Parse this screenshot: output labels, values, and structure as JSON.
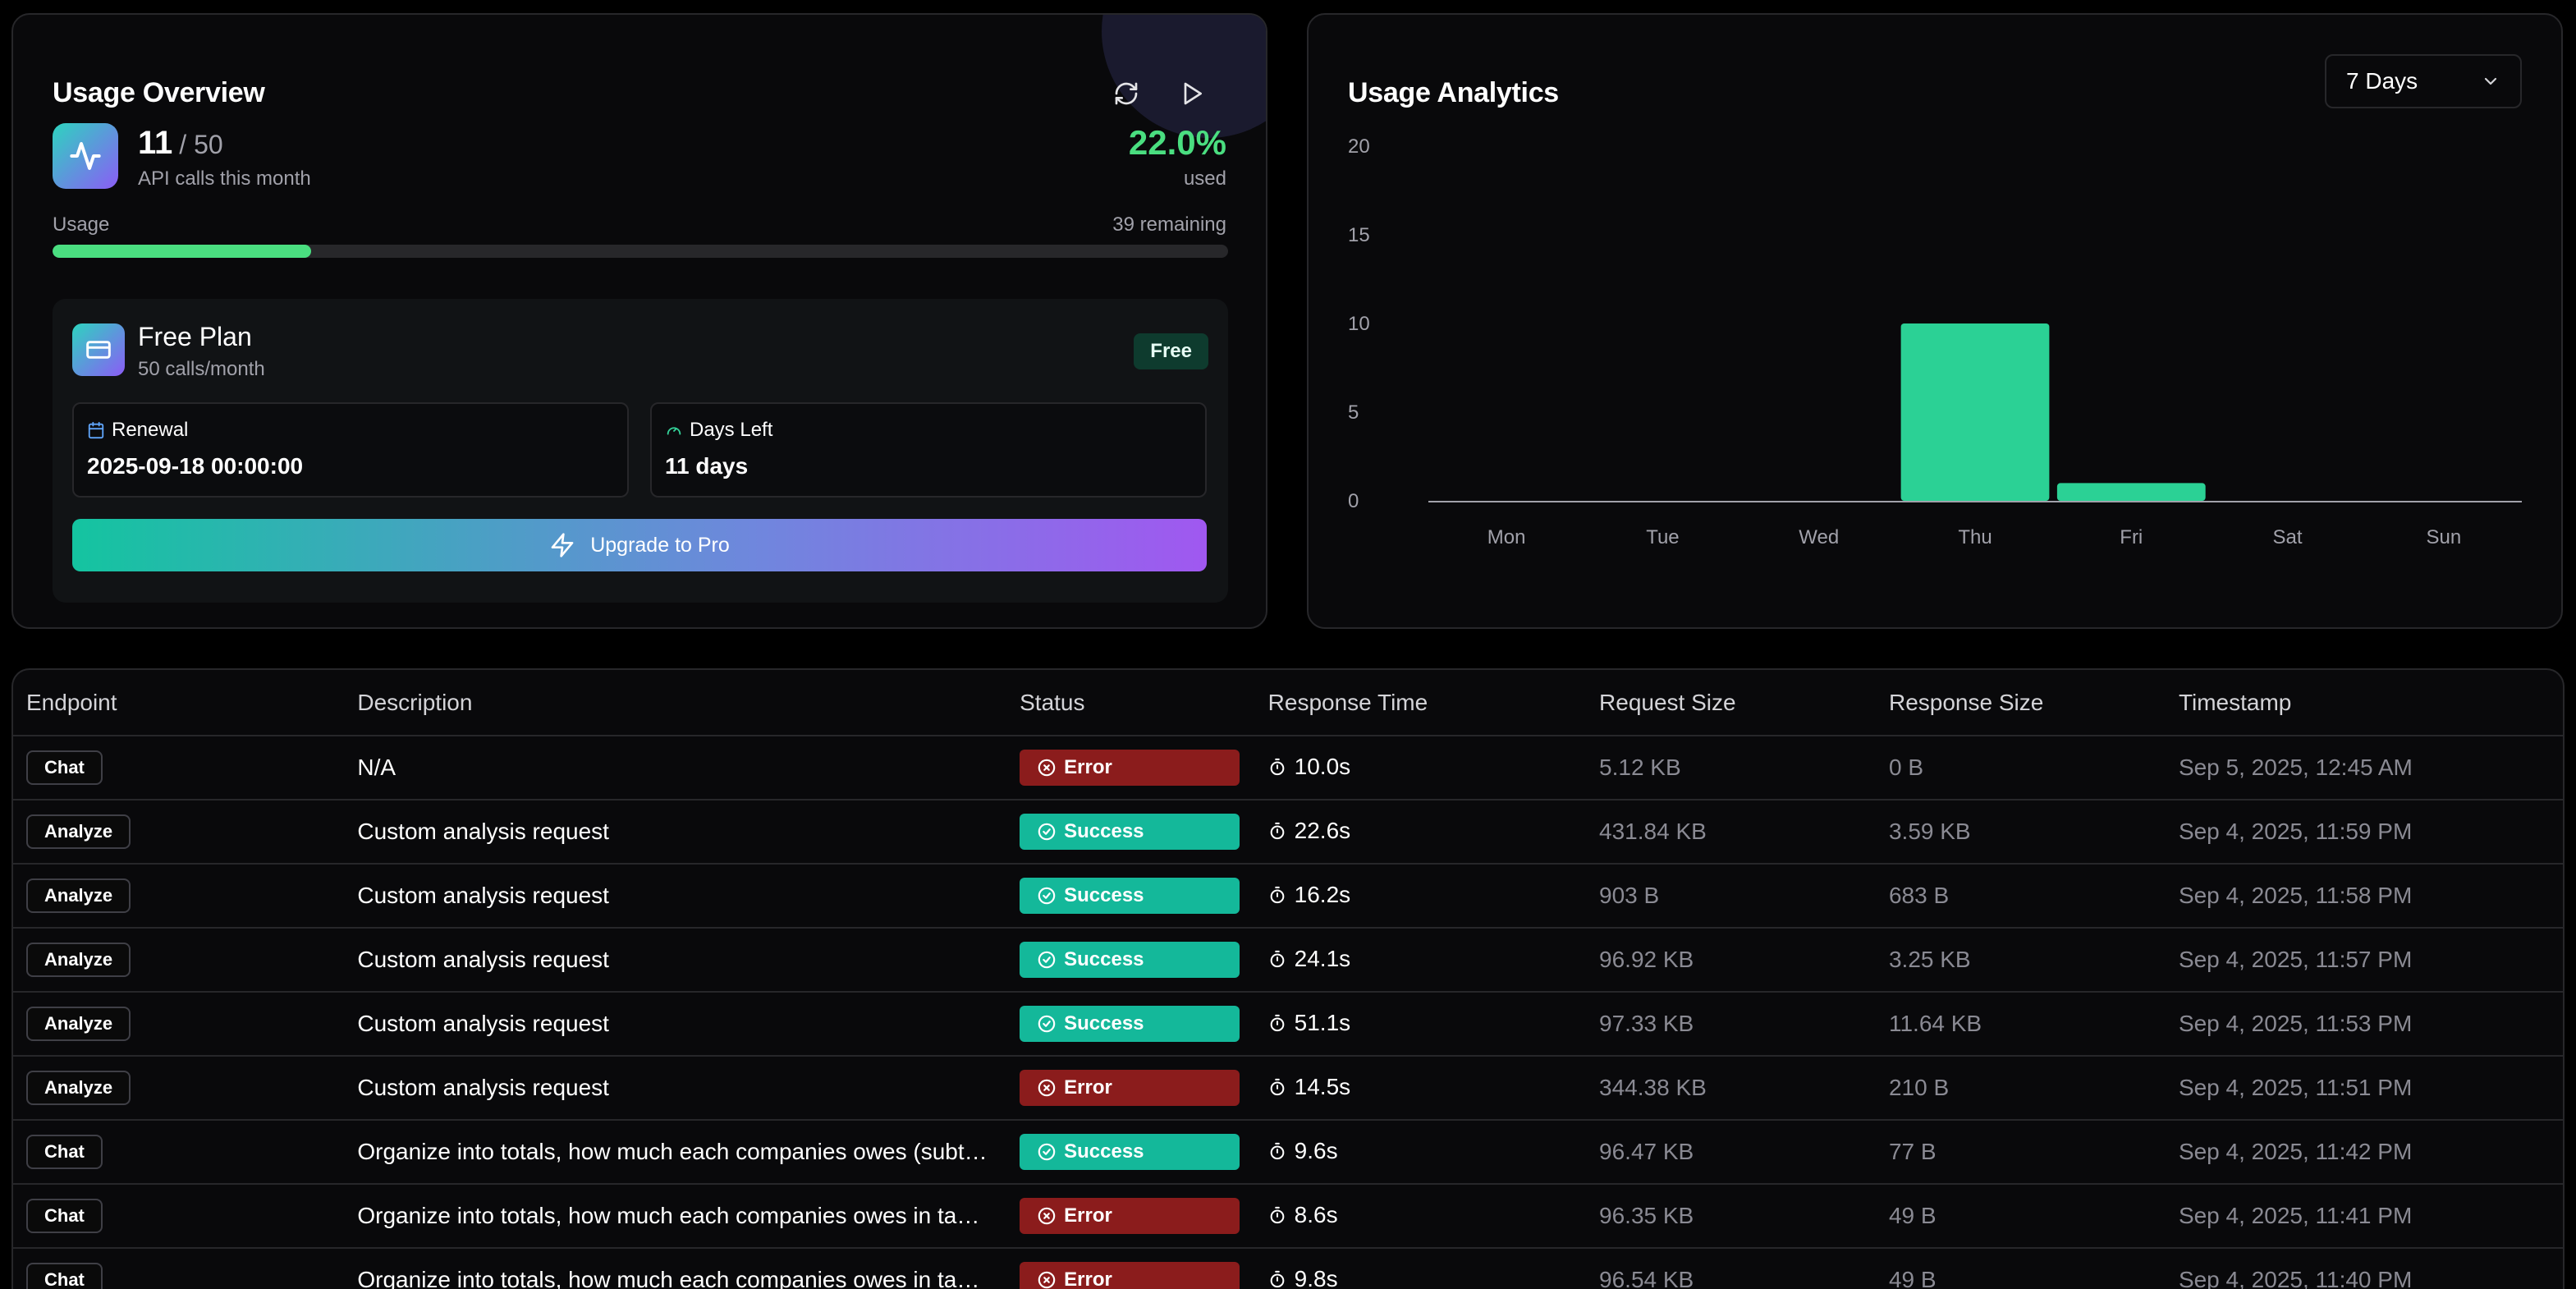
{
  "usage_overview": {
    "title": "Usage Overview",
    "used": "11",
    "limit": "/ 50",
    "subtitle": "API calls this month",
    "percent_text": "22.0%",
    "percent_label": "used",
    "progress_fraction": 0.22,
    "usage_label": "Usage",
    "remaining_label": "39 remaining",
    "plan": {
      "name": "Free Plan",
      "calls": "50 calls/month",
      "badge": "Free",
      "renewal_label": "Renewal",
      "renewal_value": "2025-09-18 00:00:00",
      "days_left_label": "Days Left",
      "days_left_value": "11 days"
    },
    "upgrade_label": "Upgrade to Pro",
    "icons": {
      "refresh": "refresh-icon",
      "play": "play-icon",
      "activity": "activity-icon",
      "card": "credit-card-icon",
      "calendar": "calendar-icon",
      "gauge": "gauge-icon",
      "zap": "zap-icon"
    }
  },
  "analytics": {
    "title": "Usage Analytics",
    "range_selected": "7 Days"
  },
  "chart_data": {
    "type": "bar",
    "categories": [
      "Mon",
      "Tue",
      "Wed",
      "Thu",
      "Fri",
      "Sat",
      "Sun"
    ],
    "values": [
      0,
      0,
      0,
      10,
      1,
      0,
      0
    ],
    "yticks": [
      "20",
      "15",
      "10",
      "5",
      "0"
    ],
    "ylim": [
      0,
      20
    ],
    "grid": false,
    "color": "#2bd195"
  },
  "table": {
    "headers": [
      "Endpoint",
      "Description",
      "Status",
      "Response Time",
      "Request Size",
      "Response Size",
      "Timestamp"
    ],
    "rows": [
      {
        "endpoint": "Chat",
        "description": "N/A",
        "status": "Error",
        "status_kind": "error",
        "response_time": "10.0s",
        "request_size": "5.12 KB",
        "response_size": "0 B",
        "timestamp": "Sep 5, 2025, 12:45 AM"
      },
      {
        "endpoint": "Analyze",
        "description": "Custom analysis request",
        "status": "Success",
        "status_kind": "success",
        "response_time": "22.6s",
        "request_size": "431.84 KB",
        "response_size": "3.59 KB",
        "timestamp": "Sep 4, 2025, 11:59 PM"
      },
      {
        "endpoint": "Analyze",
        "description": "Custom analysis request",
        "status": "Success",
        "status_kind": "success",
        "response_time": "16.2s",
        "request_size": "903 B",
        "response_size": "683 B",
        "timestamp": "Sep 4, 2025, 11:58 PM"
      },
      {
        "endpoint": "Analyze",
        "description": "Custom analysis request",
        "status": "Success",
        "status_kind": "success",
        "response_time": "24.1s",
        "request_size": "96.92 KB",
        "response_size": "3.25 KB",
        "timestamp": "Sep 4, 2025, 11:57 PM"
      },
      {
        "endpoint": "Analyze",
        "description": "Custom analysis request",
        "status": "Success",
        "status_kind": "success",
        "response_time": "51.1s",
        "request_size": "97.33 KB",
        "response_size": "11.64 KB",
        "timestamp": "Sep 4, 2025, 11:53 PM"
      },
      {
        "endpoint": "Analyze",
        "description": "Custom analysis request",
        "status": "Error",
        "status_kind": "error",
        "response_time": "14.5s",
        "request_size": "344.38 KB",
        "response_size": "210 B",
        "timestamp": "Sep 4, 2025, 11:51 PM"
      },
      {
        "endpoint": "Chat",
        "description": "Organize into totals, how much each companies owes (subt…",
        "status": "Success",
        "status_kind": "success",
        "response_time": "9.6s",
        "request_size": "96.47 KB",
        "response_size": "77 B",
        "timestamp": "Sep 4, 2025, 11:42 PM"
      },
      {
        "endpoint": "Chat",
        "description": "Organize into totals, how much each companies owes in ta…",
        "status": "Error",
        "status_kind": "error",
        "response_time": "8.6s",
        "request_size": "96.35 KB",
        "response_size": "49 B",
        "timestamp": "Sep 4, 2025, 11:41 PM"
      },
      {
        "endpoint": "Chat",
        "description": "Organize into totals, how much each companies owes in ta…",
        "status": "Error",
        "status_kind": "error",
        "response_time": "9.8s",
        "request_size": "96.54 KB",
        "response_size": "49 B",
        "timestamp": "Sep 4, 2025, 11:40 PM"
      }
    ]
  }
}
